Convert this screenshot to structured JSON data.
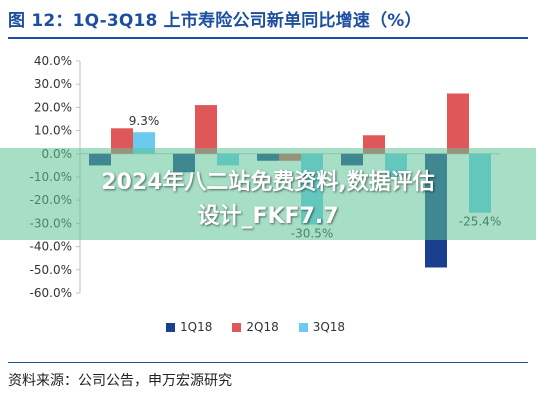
{
  "title": "图 12：1Q-3Q18 上市寿险公司新单同比增速（%）",
  "source": "资料来源：公司公告，申万宏源研究",
  "overlay": {
    "line1": "2024年八二站免费资料,数据评估",
    "line2": "设计_FKF7.7"
  },
  "colors": {
    "title": "#1c4fa0",
    "banner": "#5cc496"
  },
  "chart_data": {
    "type": "bar",
    "categories": [
      "",
      "",
      "",
      "",
      ""
    ],
    "series": [
      {
        "name": "1Q18",
        "color": "#1b3f8f",
        "values": [
          -5,
          -8,
          -3,
          -5,
          -49
        ]
      },
      {
        "name": "2Q18",
        "color": "#e0575a",
        "values": [
          11,
          21,
          -3,
          8,
          26
        ]
      },
      {
        "name": "3Q18",
        "color": "#6cc9ef",
        "values": [
          9.3,
          -5,
          -30.5,
          -10,
          -25.4
        ]
      }
    ],
    "data_labels": [
      {
        "series": 2,
        "index": 0,
        "text": "9.3%"
      },
      {
        "series": 2,
        "index": 2,
        "text": "-30.5%"
      },
      {
        "series": 2,
        "index": 4,
        "text": "-25.4%"
      }
    ],
    "y_ticks": [
      "40.0%",
      "30.0%",
      "20.0%",
      "10.0%",
      "0.0%",
      "-10.0%",
      "-20.0%",
      "-30.0%",
      "-40.0%",
      "-50.0%",
      "-60.0%"
    ],
    "ylim": [
      -60,
      40
    ],
    "grid": false,
    "legend_position": "bottom"
  }
}
